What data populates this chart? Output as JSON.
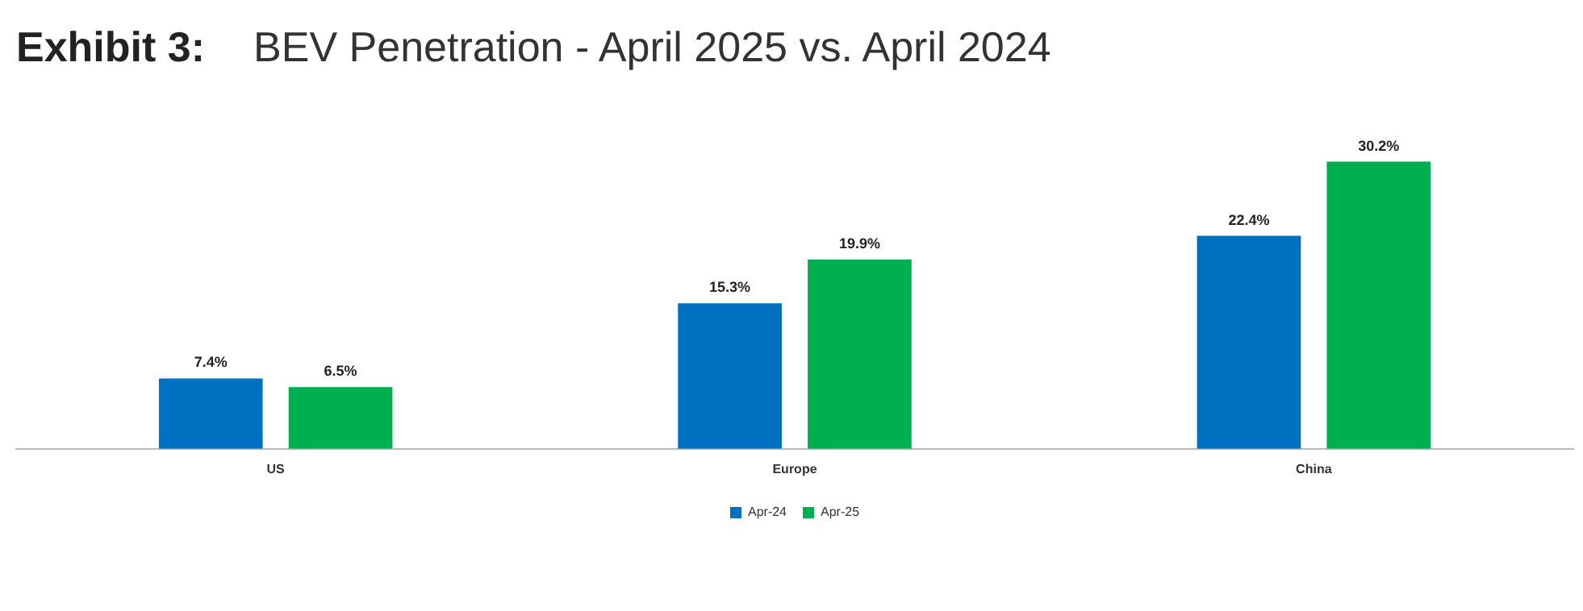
{
  "chart_data": {
    "type": "bar",
    "title": "Exhibit 3:",
    "subtitle": "BEV Penetration - April 2025 vs. April 2024",
    "categories": [
      "US",
      "Europe",
      "China"
    ],
    "series": [
      {
        "name": "Apr-24",
        "color": "#0070c0",
        "values": [
          7.4,
          15.3,
          22.4
        ],
        "value_labels": [
          "7.4%",
          "15.3%",
          "22.4%"
        ]
      },
      {
        "name": "Apr-25",
        "color": "#00b050",
        "values": [
          6.5,
          19.9,
          30.2
        ],
        "value_labels": [
          "6.5%",
          "19.9%",
          "30.2%"
        ]
      }
    ],
    "legend": "bottom",
    "grid": false
  }
}
